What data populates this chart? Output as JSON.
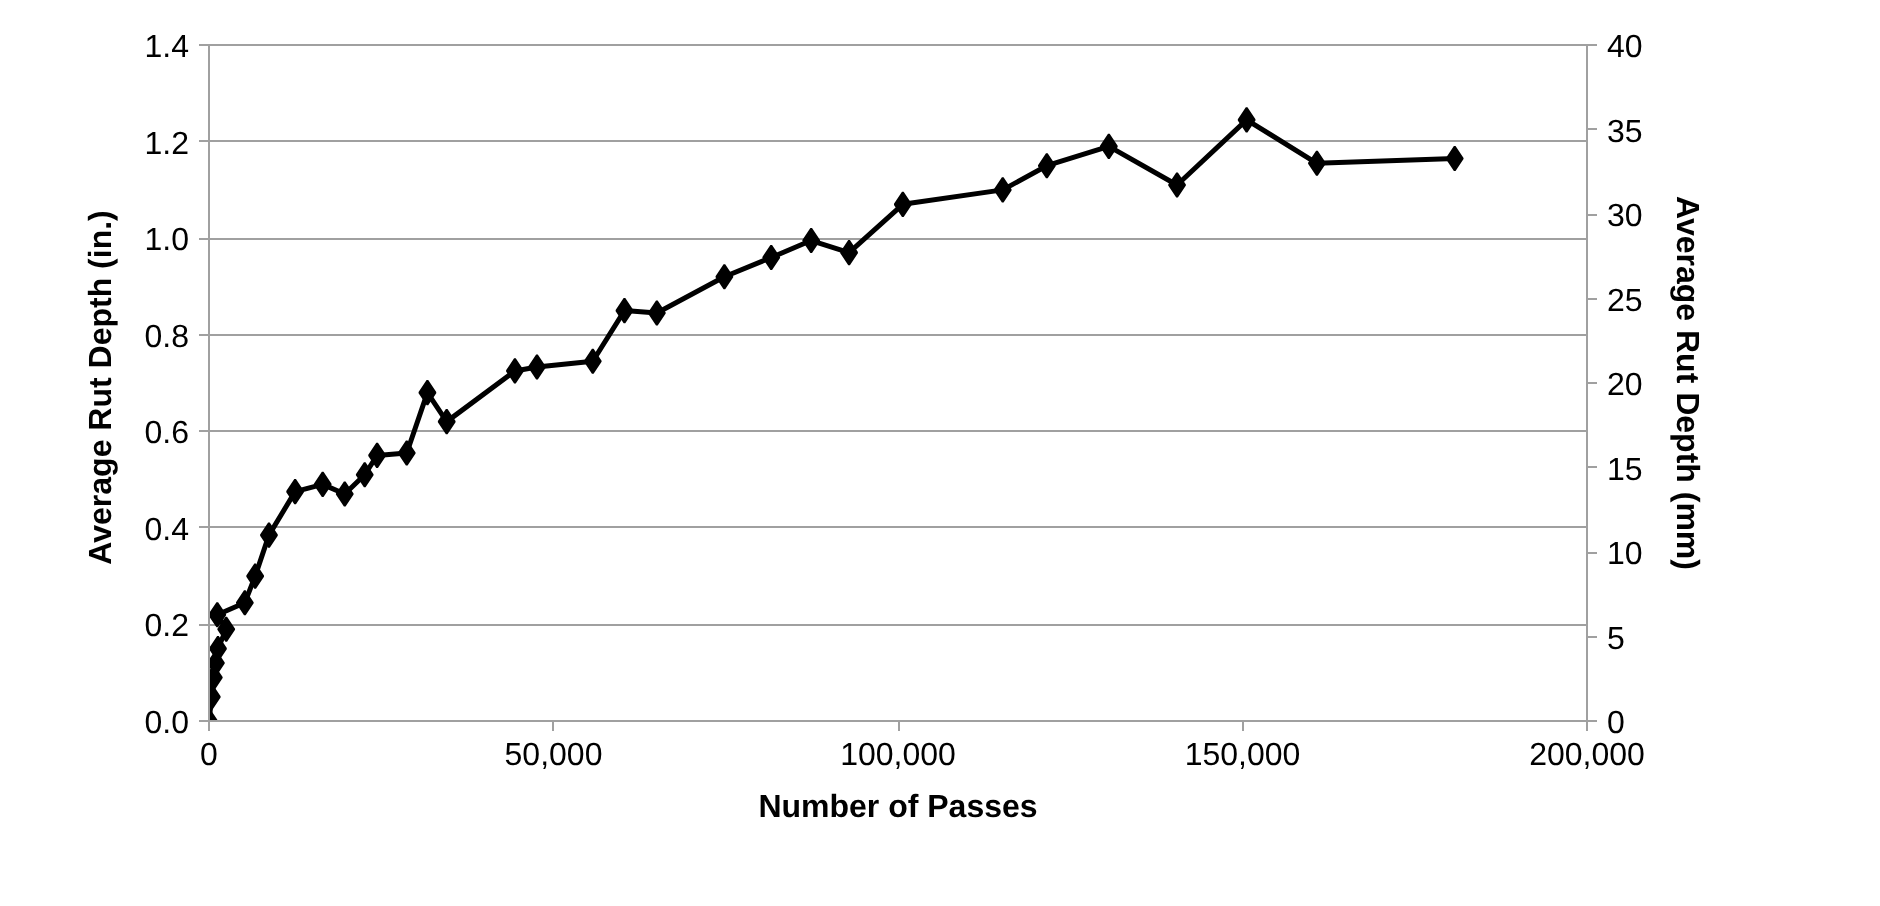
{
  "chart_data": {
    "type": "line",
    "xlabel": "Number of Passes",
    "ylabel": "Average Rut  Depth (in.)",
    "y2label": "Average Rut Depth (mm)",
    "series": [
      {
        "color": "#000000",
        "x": [
          0,
          400,
          700,
          1000,
          1300,
          2500,
          1200,
          5200,
          6700,
          8700,
          12500,
          16500,
          19700,
          22600,
          24400,
          28700,
          31700,
          34500,
          44400,
          47600,
          55700,
          60300,
          65000,
          74800,
          81600,
          87400,
          92900,
          100700,
          115200,
          121600,
          130600,
          140500,
          150600,
          160800,
          180800
        ],
        "values": [
          0,
          0.05,
          0.09,
          0.12,
          0.15,
          0.19,
          0.22,
          0.245,
          0.3,
          0.385,
          0.475,
          0.49,
          0.47,
          0.51,
          0.55,
          0.555,
          0.68,
          0.62,
          0.725,
          0.733,
          0.745,
          0.85,
          0.845,
          0.92,
          0.96,
          0.995,
          0.97,
          1.07,
          1.1,
          1.15,
          1.19,
          1.11,
          1.245,
          1.155,
          1.165
        ]
      }
    ],
    "xlim": [
      0,
      200000
    ],
    "xticks": [
      {
        "value": 0,
        "label": "0"
      },
      {
        "value": 50000,
        "label": "50,000"
      },
      {
        "value": 100000,
        "label": "100,000"
      },
      {
        "value": 150000,
        "label": "150,000"
      },
      {
        "value": 200000,
        "label": "200,000"
      }
    ],
    "ylim": [
      0,
      1.4
    ],
    "yticks": [
      {
        "value": 0,
        "label": "0.0"
      },
      {
        "value": 0.2,
        "label": "0.2"
      },
      {
        "value": 0.4,
        "label": "0.4"
      },
      {
        "value": 0.6,
        "label": "0.6"
      },
      {
        "value": 0.8,
        "label": "0.8"
      },
      {
        "value": 1.0,
        "label": "1.0"
      },
      {
        "value": 1.2,
        "label": "1.2"
      },
      {
        "value": 1.4,
        "label": "1.4"
      }
    ],
    "y2lim": [
      0,
      40
    ],
    "y2ticks": [
      0,
      5,
      10,
      15,
      20,
      25,
      30,
      35,
      40
    ],
    "grid": "y",
    "marker": "diamond",
    "line_style": "solid"
  }
}
